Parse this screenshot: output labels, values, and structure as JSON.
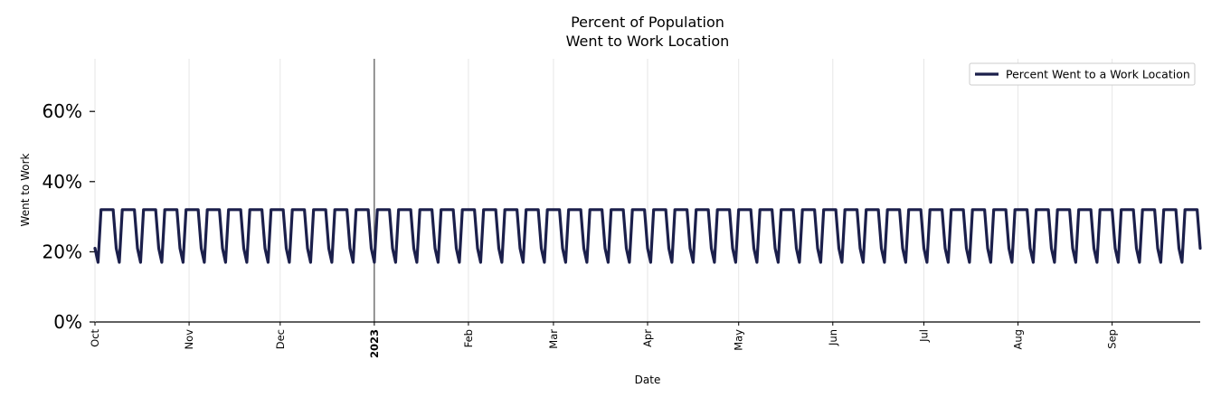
{
  "chart_data": {
    "type": "line",
    "title_lines": [
      "Percent of Population",
      "Went to Work Location"
    ],
    "xlabel": "Date",
    "ylabel": "Went to Work",
    "x_range": [
      "2022-10-01",
      "2023-09-30"
    ],
    "ylim": [
      0,
      0.75
    ],
    "y_ticks": [
      {
        "value": 0,
        "label": "0%"
      },
      {
        "value": 0.2,
        "label": "20%"
      },
      {
        "value": 0.4,
        "label": "40%"
      },
      {
        "value": 0.6,
        "label": "60%"
      }
    ],
    "x_ticks": [
      {
        "date": "2022-10-01",
        "label": "Oct",
        "bold": false
      },
      {
        "date": "2022-11-01",
        "label": "Nov",
        "bold": false
      },
      {
        "date": "2022-12-01",
        "label": "Dec",
        "bold": false
      },
      {
        "date": "2023-01-01",
        "label": "2023",
        "bold": true
      },
      {
        "date": "2023-02-01",
        "label": "Feb",
        "bold": false
      },
      {
        "date": "2023-03-01",
        "label": "Mar",
        "bold": false
      },
      {
        "date": "2023-04-01",
        "label": "Apr",
        "bold": false
      },
      {
        "date": "2023-05-01",
        "label": "May",
        "bold": false
      },
      {
        "date": "2023-06-01",
        "label": "Jun",
        "bold": false
      },
      {
        "date": "2023-07-01",
        "label": "Jul",
        "bold": false
      },
      {
        "date": "2023-08-01",
        "label": "Aug",
        "bold": false
      },
      {
        "date": "2023-09-01",
        "label": "Sep",
        "bold": false
      }
    ],
    "grid_x": true,
    "year_marker": "2023-01-01",
    "legend": {
      "position": "top-right"
    },
    "series": [
      {
        "name": "Percent Went to a Work Location",
        "color": "#1b1f4b",
        "weekly_pattern": {
          "start_date": "2022-10-01",
          "end_date": "2023-09-30",
          "start_weekday": "Saturday",
          "weekday_level": 0.32,
          "saturday_level": 0.21,
          "sunday_level": 0.17
        }
      }
    ]
  }
}
